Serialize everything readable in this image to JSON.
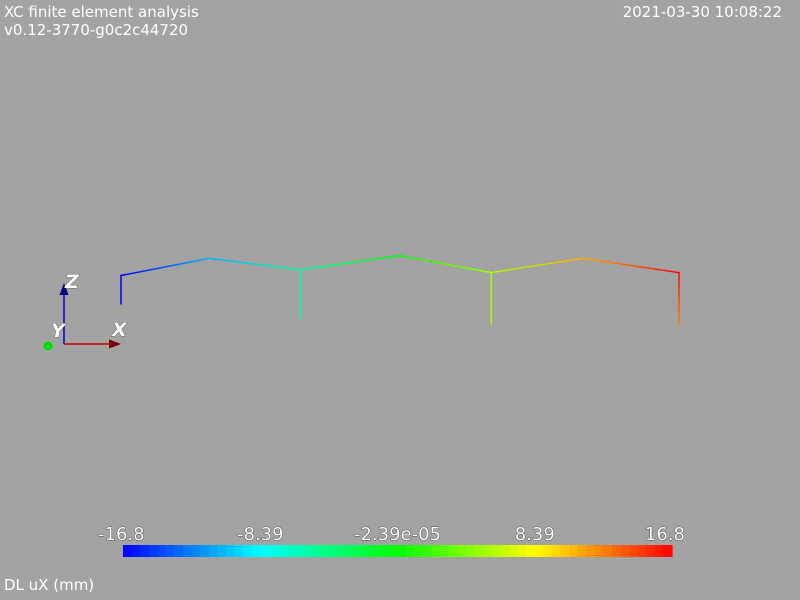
{
  "header": {
    "title": "XC finite element analysis",
    "version": "v0.12-3770-g0c2c44720",
    "timestamp": "2021-03-30 10:08:22"
  },
  "axes_triad": {
    "labels": {
      "x": "X",
      "y": "Y",
      "z": "Z"
    },
    "colors": {
      "x": "#cc0000",
      "y": "#00dd00",
      "z": "#0000cc"
    }
  },
  "scalar_bar": {
    "field_label": "DL uX (mm)",
    "tick_labels": [
      "-16.8",
      "-8.39",
      "-2.39e-05",
      "8.39",
      "16.8"
    ],
    "range": [
      -16.8,
      16.8
    ],
    "colormap": [
      "#0000ff",
      "#00ffff",
      "#00ff00",
      "#ffff00",
      "#ff0000"
    ]
  },
  "structure": {
    "nodes": {
      "c1b": [
        -16.8,
        0
      ],
      "c1t": [
        -16.8,
        30
      ],
      "r1": [
        -11.5,
        48
      ],
      "p2t": [
        -6,
        36
      ],
      "p2b": [
        -6,
        -15
      ],
      "r2": [
        0,
        51
      ],
      "p3t": [
        5.5,
        33
      ],
      "p3b": [
        5.5,
        -21
      ],
      "r3": [
        11,
        48
      ],
      "c4t": [
        16.8,
        33
      ],
      "c4b": [
        16.8,
        -21
      ]
    },
    "members": [
      [
        "c1b",
        "c1t"
      ],
      [
        "c1t",
        "r1"
      ],
      [
        "r1",
        "p2t"
      ],
      [
        "p2t",
        "r2"
      ],
      [
        "r2",
        "p3t"
      ],
      [
        "p3t",
        "r3"
      ],
      [
        "r3",
        "c4t"
      ],
      [
        "p2t",
        "p2b"
      ],
      [
        "p3t",
        "p3b"
      ],
      [
        "c4t",
        "c4b"
      ]
    ],
    "node_values": {
      "c1b": -16.8,
      "c1t": -16.8,
      "r1": -11,
      "p2t": -5.5,
      "p2b": -5.5,
      "r2": 0,
      "p3t": 5.5,
      "p3b": 5.5,
      "r3": 11,
      "c4t": 16.8,
      "c4b": 12.5
    }
  }
}
